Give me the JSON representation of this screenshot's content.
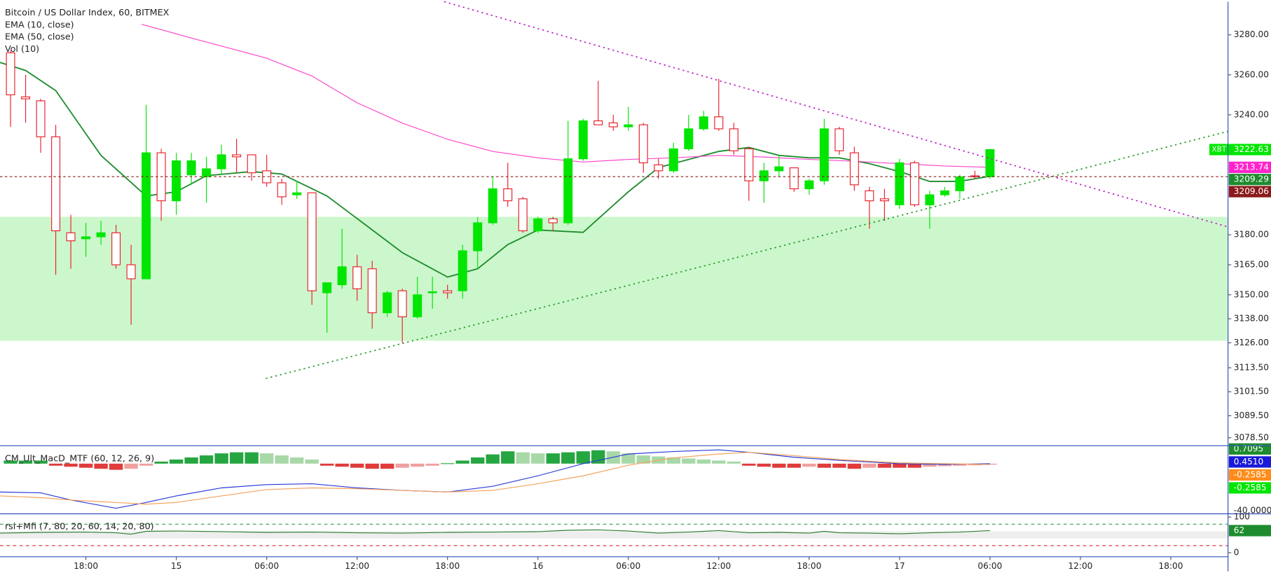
{
  "chart_data": [
    {
      "type": "candlestick",
      "title": "Bitcoin / US Dollar Index, 60, BITMEX",
      "extra_legend": "Vol (10)",
      "xlim": [
        12.3,
        93.8
      ],
      "ylim": [
        3074.5,
        3296.6
      ],
      "up_color": "#00e600",
      "down_color": "#e8202a",
      "yticks": [
        {
          "value": 3280,
          "label": "3280.00"
        },
        {
          "value": 3260,
          "label": "3260.00"
        },
        {
          "value": 3240,
          "label": "3240.00"
        },
        {
          "value": 3180,
          "label": "3180.00"
        },
        {
          "value": 3165,
          "label": "3165.00"
        },
        {
          "value": 3150,
          "label": "3150.00"
        },
        {
          "value": 3138,
          "label": "3138.00"
        },
        {
          "value": 3126,
          "label": "3126.00"
        },
        {
          "value": 3113.5,
          "label": "3113.50"
        },
        {
          "value": 3101.5,
          "label": "3101.50"
        },
        {
          "value": 3089.5,
          "label": "3089.50"
        },
        {
          "value": 3078.5,
          "label": "3078.50"
        }
      ],
      "x": [
        13,
        14,
        15,
        16,
        17,
        18,
        19,
        20,
        21,
        22,
        23,
        24,
        25,
        26,
        27,
        28,
        29,
        30,
        31,
        32,
        33,
        34,
        35,
        36,
        37,
        38,
        39,
        40,
        41,
        42,
        43,
        44,
        45,
        46,
        47,
        48,
        49,
        50,
        51,
        52,
        53,
        54,
        55,
        56,
        57,
        58,
        59,
        60,
        61,
        62,
        63,
        64,
        65,
        66,
        67,
        68,
        69,
        70,
        71,
        72,
        73,
        74,
        75,
        76,
        77,
        78
      ],
      "open": [
        3271,
        3249,
        3247,
        3229,
        3181,
        3178,
        3179,
        3181,
        3165,
        3158,
        3221,
        3197,
        3210,
        3209,
        3213,
        3220,
        3220,
        3212,
        3206,
        3200,
        3201,
        3151,
        3155,
        3164,
        3163,
        3141,
        3152,
        3139,
        3151,
        3152,
        3152,
        3172,
        3186,
        3203,
        3198,
        3182,
        3188,
        3186,
        3218,
        3237,
        3236,
        3234,
        3235,
        3215,
        3212,
        3223,
        3233,
        3239,
        3233,
        3223,
        3207,
        3212,
        3213.5,
        3203,
        3207,
        3233,
        3221,
        3202,
        3198,
        3195,
        3216,
        3195,
        3200,
        3202,
        3209.5,
        3209
      ],
      "high": [
        3272,
        3260,
        3248,
        3235,
        3190,
        3186,
        3187,
        3185,
        3175,
        3245,
        3223,
        3221,
        3221,
        3219,
        3225,
        3228,
        3220,
        3220,
        3208,
        3207,
        3201,
        3156,
        3183,
        3170,
        3167,
        3152,
        3153,
        3159,
        3159,
        3155,
        3175,
        3189,
        3209,
        3216,
        3199,
        3189,
        3189,
        3237,
        3238,
        3257,
        3240,
        3244,
        3236,
        3218,
        3226,
        3240,
        3242,
        3258,
        3236,
        3224,
        3216,
        3220,
        3213.5,
        3208,
        3238,
        3234,
        3224,
        3204,
        3203,
        3218,
        3217,
        3202,
        3204,
        3210,
        3212,
        3223
      ],
      "low": [
        3234,
        3236,
        3221,
        3160,
        3163,
        3169,
        3175,
        3163,
        3135,
        3158,
        3187,
        3190,
        3205,
        3196,
        3210,
        3211,
        3207,
        3204,
        3195,
        3198,
        3145,
        3131,
        3153,
        3147,
        3133,
        3139,
        3126,
        3138,
        3143,
        3148,
        3148,
        3163,
        3185,
        3194,
        3181,
        3181,
        3182,
        3185,
        3217,
        3235,
        3232,
        3232,
        3211,
        3208,
        3211,
        3222,
        3232,
        3232,
        3220,
        3197,
        3196,
        3209,
        3201.5,
        3200,
        3205,
        3220,
        3202,
        3183,
        3187,
        3193,
        3194,
        3183,
        3199,
        3198,
        3208,
        3208
      ],
      "close": [
        3250,
        3248,
        3229,
        3182,
        3177,
        3179,
        3181,
        3165,
        3158,
        3221,
        3197,
        3217,
        3217,
        3213,
        3220,
        3219,
        3211,
        3206,
        3199,
        3201,
        3152,
        3156,
        3164,
        3153,
        3141,
        3151,
        3139,
        3150,
        3151.5,
        3151,
        3172,
        3186,
        3203,
        3197,
        3182,
        3188,
        3186,
        3218,
        3237,
        3235,
        3234,
        3235,
        3216,
        3212,
        3223,
        3233,
        3239,
        3233,
        3222,
        3207,
        3212,
        3214,
        3203,
        3207,
        3233,
        3222,
        3205,
        3197,
        3197,
        3216,
        3195,
        3200,
        3202,
        3209,
        3209,
        3222.63
      ],
      "series": [
        {
          "name": "EMA (10, close)",
          "color": "#1e8c2e",
          "x": [
            12.3,
            14,
            16,
            19,
            22,
            24,
            26,
            29,
            31,
            34,
            36,
            39,
            42,
            44,
            46,
            48,
            51,
            54,
            56,
            58,
            60,
            62,
            64,
            66,
            68,
            70,
            72,
            74,
            76,
            78
          ],
          "values": [
            3266.2,
            3262.2,
            3252.1,
            3219.7,
            3199.4,
            3201.5,
            3209.6,
            3211.6,
            3210.4,
            3199.4,
            3188.1,
            3171.1,
            3158.9,
            3163,
            3175.1,
            3182.4,
            3181.2,
            3201.5,
            3213.6,
            3217.7,
            3221.7,
            3223.7,
            3219.7,
            3218.5,
            3218.5,
            3215.6,
            3211.6,
            3206.7,
            3206.7,
            3209.29
          ]
        },
        {
          "name": "EMA (50, close)",
          "color": "#ff44cc",
          "x": [
            21.7,
            25,
            30,
            33,
            36,
            39,
            42,
            45,
            48,
            51,
            54,
            57,
            60,
            63,
            66,
            69,
            72,
            75,
            78
          ],
          "values": [
            3285.3,
            3278.4,
            3268.3,
            3259.4,
            3246,
            3235.9,
            3227.8,
            3221.7,
            3218.5,
            3216.4,
            3217.7,
            3218.5,
            3219.7,
            3218.9,
            3217.7,
            3216.8,
            3215.6,
            3214.4,
            3213.74
          ]
        }
      ],
      "zone": {
        "low": 3127,
        "high": 3189,
        "color": "#ccf7cc"
      },
      "price_labels": [
        {
          "label": "XBT",
          "value": 3222.63,
          "color": "#00e600"
        },
        {
          "value": 3213.74,
          "color": "#ff22cc"
        },
        {
          "value": 3209.29,
          "color": "#1e8c2e"
        },
        {
          "value": 3209.06,
          "color": "#8b1a1a",
          "line": true
        }
      ]
    },
    {
      "type": "macd",
      "title": "CM_Ult_MacD_MTF (60, 12, 26, 9)",
      "ylim": [
        -2.44,
        0.87
      ],
      "scale_label": "-40.0000",
      "x": [
        13,
        14,
        15,
        16,
        17,
        18,
        19,
        20,
        21,
        22,
        23,
        24,
        25,
        26,
        27,
        28,
        29,
        30,
        31,
        32,
        33,
        34,
        35,
        36,
        37,
        38,
        39,
        40,
        41,
        42,
        43,
        44,
        45,
        46,
        47,
        48,
        49,
        50,
        51,
        52,
        53,
        54,
        55,
        56,
        57,
        58,
        59,
        60,
        61,
        62,
        63,
        64,
        65,
        66,
        67,
        68,
        69,
        70,
        71,
        72,
        73,
        74,
        75,
        76,
        77,
        78
      ],
      "histogram": [
        0.15,
        0.15,
        0.15,
        -0.1,
        -0.15,
        -0.2,
        -0.25,
        -0.3,
        -0.25,
        -0.1,
        0.1,
        0.2,
        0.3,
        0.4,
        0.5,
        0.55,
        0.55,
        0.5,
        0.4,
        0.3,
        0.2,
        -0.1,
        -0.15,
        -0.2,
        -0.25,
        -0.25,
        -0.2,
        -0.15,
        -0.1,
        0.02,
        0.15,
        0.3,
        0.45,
        0.6,
        0.55,
        0.5,
        0.5,
        0.55,
        0.6,
        0.65,
        0.6,
        0.5,
        0.4,
        0.35,
        0.3,
        0.25,
        0.2,
        0.15,
        0.1,
        -0.1,
        -0.15,
        -0.2,
        -0.2,
        -0.15,
        -0.2,
        -0.2,
        -0.25,
        -0.2,
        -0.2,
        -0.2,
        -0.2,
        -0.15,
        -0.12,
        -0.1,
        -0.08,
        -0.05
      ],
      "up_colors": [
        "#26a641",
        "#a8d8a8"
      ],
      "down_colors": [
        "#e03c3c",
        "#f0a0a0"
      ],
      "series": [
        {
          "color": "#2a3ad8",
          "x": [
            12.3,
            15,
            17,
            20,
            22,
            24,
            27,
            30,
            33,
            36,
            39,
            42,
            45,
            48,
            51,
            54,
            57,
            60,
            62,
            65,
            68,
            72,
            75,
            78
          ],
          "values": [
            -1.38,
            -1.42,
            -1.77,
            -2.17,
            -1.89,
            -1.57,
            -1.18,
            -1.02,
            -0.98,
            -1.18,
            -1.3,
            -1.38,
            -1.1,
            -0.59,
            0,
            0.47,
            0.59,
            0.67,
            0.55,
            0.31,
            0.16,
            0,
            -0.04,
            0
          ]
        },
        {
          "color": "#f5a25a",
          "x": [
            12.3,
            15,
            17,
            20,
            22,
            24,
            27,
            30,
            33,
            36,
            39,
            42,
            45,
            48,
            51,
            54,
            57,
            60,
            62,
            65,
            68,
            72,
            75,
            78
          ],
          "values": [
            -1.57,
            -1.65,
            -1.77,
            -1.89,
            -1.97,
            -1.89,
            -1.57,
            -1.26,
            -1.18,
            -1.22,
            -1.3,
            -1.38,
            -1.3,
            -0.98,
            -0.59,
            -0.08,
            0.28,
            0.47,
            0.55,
            0.39,
            0.2,
            0.04,
            0,
            -0.04
          ]
        }
      ],
      "value_tags": [
        {
          "value": 0.7095,
          "label": "0.7095",
          "color": "#1e8c2e"
        },
        {
          "value": 0.451,
          "label": "0.4510",
          "color": "#1a1ad8"
        },
        {
          "value": -0.2585,
          "label": "-0.2585",
          "color": "#ff8c1a"
        },
        {
          "value": -0.2585,
          "label": "-0.2585",
          "color": "#00e600"
        }
      ]
    },
    {
      "type": "rsi",
      "title": "rsi+Mfi (7, 80, 20, 60, 14, 20, 80)",
      "ylim": [
        -11.36,
        109.1
      ],
      "yticks": [
        100,
        0
      ],
      "levels": [
        {
          "value": 80,
          "color": "#2e9e3e"
        },
        {
          "value": 20,
          "color": "#e03c3c"
        }
      ],
      "band": [
        40,
        60
      ],
      "xlim": [
        12.3,
        93.8
      ],
      "xticks": [
        {
          "value": 18,
          "label": "18:00"
        },
        {
          "value": 24,
          "label": "15"
        },
        {
          "value": 30,
          "label": "06:00"
        },
        {
          "value": 36,
          "label": "12:00"
        },
        {
          "value": 42,
          "label": "18:00"
        },
        {
          "value": 48,
          "label": "16"
        },
        {
          "value": 54,
          "label": "06:00"
        },
        {
          "value": 60,
          "label": "12:00"
        },
        {
          "value": 66,
          "label": "18:00"
        },
        {
          "value": 72,
          "label": "17"
        },
        {
          "value": 78,
          "label": "06:00"
        },
        {
          "value": 84,
          "label": "12:00"
        },
        {
          "value": 90,
          "label": "18:00"
        }
      ],
      "series": [
        {
          "color": "#2e7d32",
          "x": [
            12.3,
            15,
            18,
            20,
            21,
            22,
            24,
            27,
            30,
            33,
            36,
            39,
            42,
            45,
            48,
            50,
            52,
            54,
            56,
            58,
            60,
            62,
            64,
            66,
            67,
            68,
            70,
            72,
            74,
            76,
            78
          ],
          "values": [
            55,
            57,
            58,
            56,
            52,
            60,
            61,
            59,
            57,
            58,
            56,
            55,
            57,
            58,
            59,
            63,
            64,
            61,
            55,
            58,
            62,
            56,
            57,
            55,
            60,
            56,
            55,
            53,
            56,
            58,
            62
          ]
        }
      ],
      "value_tags": [
        {
          "value": 62,
          "color": "#1e8c2e"
        }
      ]
    }
  ]
}
